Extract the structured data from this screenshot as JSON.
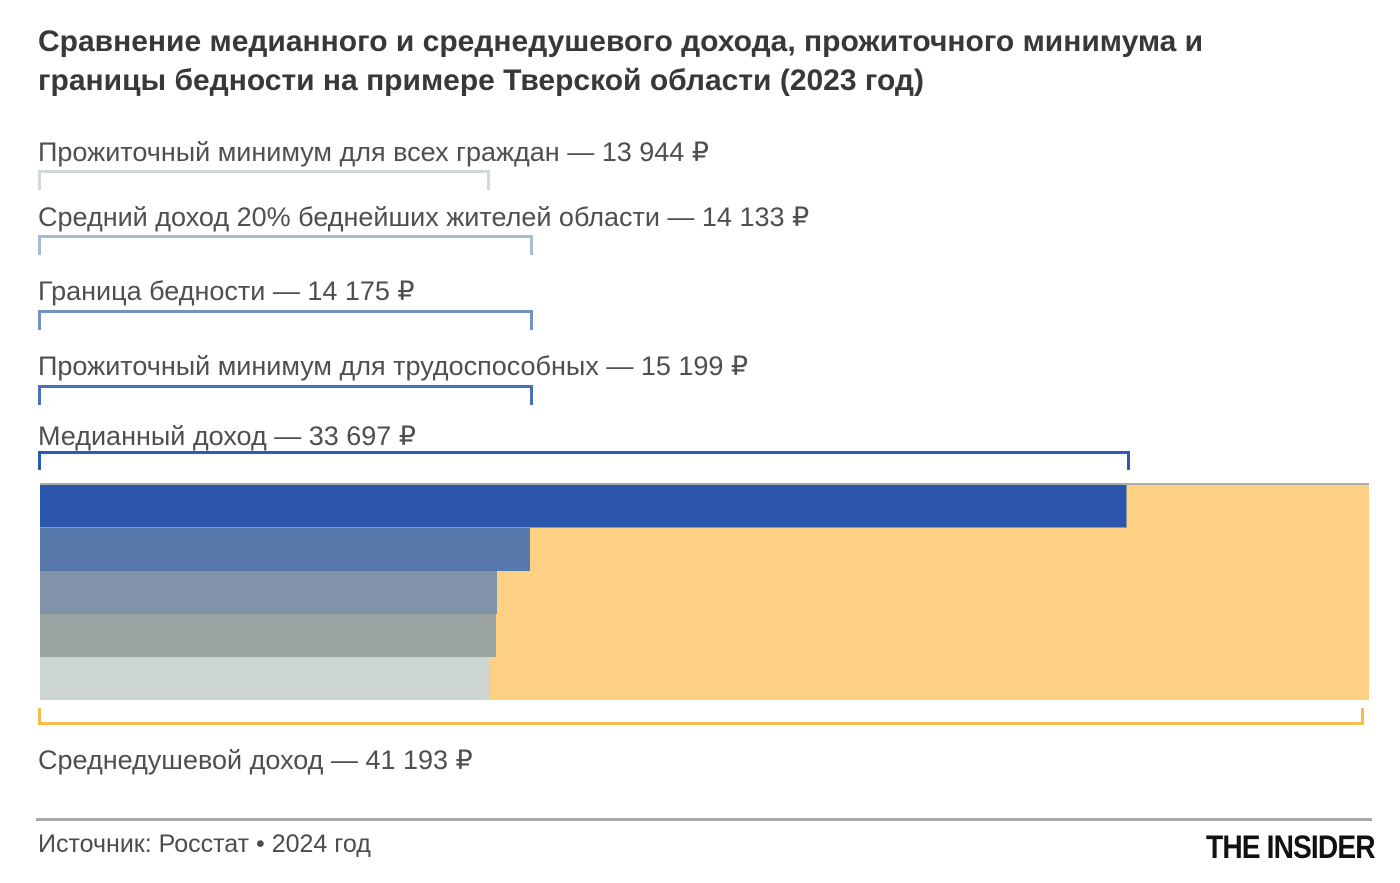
{
  "title": "Сравнение медианного и среднедушевого дохода, прожиточного минимума и границы бедности на примере Тверской области (2023 год)",
  "callouts": [
    {
      "text": "Прожиточный минимум для всех граждан — 13 944 ₽"
    },
    {
      "text": "Средний доход 20% беднейших жителей области — 14 133 ₽"
    },
    {
      "text": "Граница бедности — 14 175 ₽"
    },
    {
      "text": "Прожиточный минимум для трудоспособных — 15 199 ₽"
    },
    {
      "text": "Медианный доход — 33 697 ₽"
    },
    {
      "text": "Среднедушевой доход — 41 193 ₽"
    }
  ],
  "footer": {
    "source": "Источник: Росстат • 2024 год",
    "logo": "THE INSIDER"
  },
  "colors": {
    "bar_colors": [
      "#2b56ac",
      "#5678aa",
      "#8193a8",
      "#9aa5a4",
      "#cdd5d0"
    ],
    "average_bar": "#fdd083",
    "bracket_colors": [
      "#cfdad6",
      "#a8bccd",
      "#7592bf",
      "#4a72b8",
      "#2d5ab6"
    ],
    "average_bracket": "#f7bc4b",
    "title_text": "#383838",
    "label_text": "#4f4f4f"
  },
  "chart_data": {
    "type": "bar",
    "orientation": "horizontal",
    "title": "Сравнение медианного и среднедушевого дохода, прожиточного минимума и границы бедности на примере Тверской области (2023 год)",
    "unit": "₽",
    "categories": [
      "Медианный доход",
      "Прожиточный минимум для трудоспособных",
      "Граница бедности",
      "Средний доход 20% беднейших жителей области",
      "Прожиточный минимум для всех граждан"
    ],
    "values": [
      33697,
      15199,
      14175,
      14133,
      13944
    ],
    "background_bar": {
      "label": "Среднедушевой доход",
      "value": 41193
    },
    "xlim": [
      0,
      41193
    ],
    "grid": false,
    "legend": false,
    "source": "Росстат • 2024 год"
  }
}
